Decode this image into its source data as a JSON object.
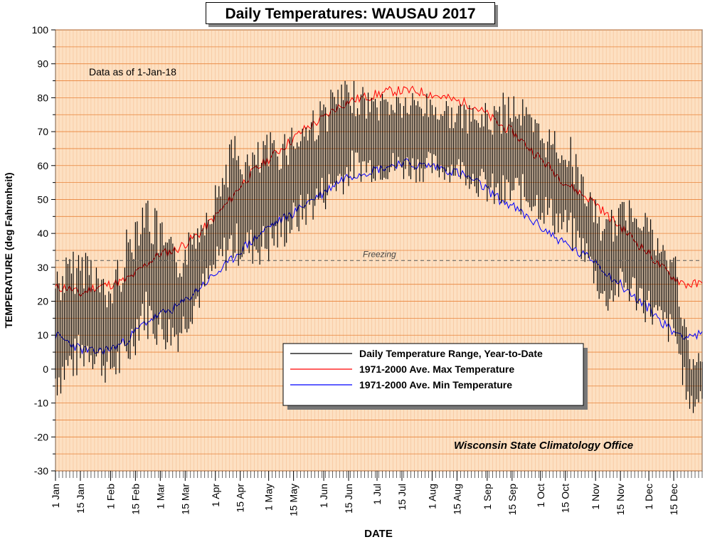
{
  "chart_data": {
    "type": "line",
    "title": "Daily Temperatures: WAUSAU 2017",
    "subtitle": "Data as of 1-Jan-18",
    "xlabel": "DATE",
    "ylabel": "TEMPERATURE (deg Fahrenheit)",
    "ylim": [
      -30,
      100
    ],
    "y_ticks": [
      "-30",
      "-20",
      "-10",
      "0",
      "10",
      "20",
      "30",
      "40",
      "50",
      "60",
      "70",
      "80",
      "90",
      "100"
    ],
    "x_ticks": [
      {
        "label": "1 Jan",
        "day": 1
      },
      {
        "label": "15 Jan",
        "day": 15
      },
      {
        "label": "1 Feb",
        "day": 32
      },
      {
        "label": "15 Feb",
        "day": 46
      },
      {
        "label": "1 Mar",
        "day": 60
      },
      {
        "label": "15 Mar",
        "day": 74
      },
      {
        "label": "1 Apr",
        "day": 91
      },
      {
        "label": "15 Apr",
        "day": 105
      },
      {
        "label": "1 May",
        "day": 121
      },
      {
        "label": "15 May",
        "day": 135
      },
      {
        "label": "1 Jun",
        "day": 152
      },
      {
        "label": "15 Jun",
        "day": 166
      },
      {
        "label": "1 Jul",
        "day": 182
      },
      {
        "label": "15 Jul",
        "day": 196
      },
      {
        "label": "1 Aug",
        "day": 213
      },
      {
        "label": "15 Aug",
        "day": 227
      },
      {
        "label": "1 Sep",
        "day": 244
      },
      {
        "label": "15 Sep",
        "day": 258
      },
      {
        "label": "1 Oct",
        "day": 274
      },
      {
        "label": "15 Oct",
        "day": 288
      },
      {
        "label": "1 Nov",
        "day": 305
      },
      {
        "label": "15 Nov",
        "day": 319
      },
      {
        "label": "1 Dec",
        "day": 335
      },
      {
        "label": "15 Dec",
        "day": 349
      }
    ],
    "reference_line": {
      "value": 32,
      "label": "Freezing"
    },
    "legend": {
      "placement": "bottom-center",
      "items": [
        {
          "label": "Daily Temperature Range, Year-to-Date",
          "color": "#000000"
        },
        {
          "label": "1971-2000 Ave. Max Temperature",
          "color": "#ff0000"
        },
        {
          "label": "1971-2000 Ave. Min Temperature",
          "color": "#0000ff"
        }
      ]
    },
    "annotation": "Wisconsin State Climatology Office",
    "series": [
      {
        "name": "1971-2000 Ave. Max Temperature",
        "color": "#ff0000",
        "points": [
          [
            1,
            24
          ],
          [
            8,
            24
          ],
          [
            15,
            22
          ],
          [
            22,
            24
          ],
          [
            32,
            25
          ],
          [
            40,
            26
          ],
          [
            46,
            28
          ],
          [
            52,
            31
          ],
          [
            60,
            34
          ],
          [
            68,
            35
          ],
          [
            74,
            37
          ],
          [
            82,
            40
          ],
          [
            91,
            45
          ],
          [
            98,
            49
          ],
          [
            105,
            54
          ],
          [
            112,
            58
          ],
          [
            121,
            62
          ],
          [
            128,
            65
          ],
          [
            135,
            68
          ],
          [
            142,
            71
          ],
          [
            152,
            74
          ],
          [
            159,
            77
          ],
          [
            166,
            79
          ],
          [
            174,
            80
          ],
          [
            182,
            81
          ],
          [
            190,
            82
          ],
          [
            196,
            82
          ],
          [
            204,
            82
          ],
          [
            213,
            81
          ],
          [
            220,
            80
          ],
          [
            227,
            79
          ],
          [
            235,
            78
          ],
          [
            244,
            75
          ],
          [
            251,
            72
          ],
          [
            258,
            70
          ],
          [
            266,
            66
          ],
          [
            274,
            62
          ],
          [
            282,
            58
          ],
          [
            288,
            55
          ],
          [
            296,
            52
          ],
          [
            305,
            49
          ],
          [
            312,
            45
          ],
          [
            319,
            42
          ],
          [
            327,
            38
          ],
          [
            335,
            34
          ],
          [
            342,
            30
          ],
          [
            349,
            27
          ],
          [
            356,
            25
          ],
          [
            365,
            25
          ]
        ]
      },
      {
        "name": "1971-2000 Ave. Min Temperature",
        "color": "#0000ff",
        "points": [
          [
            1,
            10
          ],
          [
            8,
            8
          ],
          [
            15,
            6
          ],
          [
            22,
            5
          ],
          [
            32,
            6
          ],
          [
            40,
            8
          ],
          [
            46,
            11
          ],
          [
            52,
            14
          ],
          [
            60,
            16
          ],
          [
            68,
            18
          ],
          [
            74,
            20
          ],
          [
            82,
            24
          ],
          [
            91,
            28
          ],
          [
            98,
            31
          ],
          [
            105,
            35
          ],
          [
            112,
            38
          ],
          [
            121,
            42
          ],
          [
            128,
            44
          ],
          [
            135,
            46
          ],
          [
            142,
            49
          ],
          [
            152,
            52
          ],
          [
            159,
            55
          ],
          [
            166,
            57
          ],
          [
            174,
            58
          ],
          [
            182,
            59
          ],
          [
            190,
            60
          ],
          [
            196,
            61
          ],
          [
            204,
            60
          ],
          [
            213,
            60
          ],
          [
            220,
            59
          ],
          [
            227,
            58
          ],
          [
            235,
            56
          ],
          [
            244,
            53
          ],
          [
            251,
            50
          ],
          [
            258,
            48
          ],
          [
            266,
            45
          ],
          [
            274,
            42
          ],
          [
            282,
            39
          ],
          [
            288,
            37
          ],
          [
            296,
            34
          ],
          [
            305,
            32
          ],
          [
            312,
            28
          ],
          [
            319,
            25
          ],
          [
            327,
            21
          ],
          [
            335,
            18
          ],
          [
            342,
            14
          ],
          [
            349,
            11
          ],
          [
            356,
            10
          ],
          [
            365,
            10
          ]
        ]
      },
      {
        "name": "Daily Temperature Range, Year-to-Date",
        "color": "#000000",
        "points": [
          [
            1,
            -10,
            32
          ],
          [
            10,
            -5,
            35
          ],
          [
            20,
            0,
            38
          ],
          [
            30,
            -5,
            25
          ],
          [
            40,
            -5,
            40
          ],
          [
            50,
            10,
            55
          ],
          [
            60,
            5,
            45
          ],
          [
            70,
            5,
            35
          ],
          [
            80,
            15,
            45
          ],
          [
            91,
            25,
            55
          ],
          [
            100,
            30,
            70
          ],
          [
            110,
            30,
            65
          ],
          [
            121,
            30,
            70
          ],
          [
            130,
            35,
            72
          ],
          [
            140,
            40,
            75
          ],
          [
            150,
            45,
            80
          ],
          [
            160,
            50,
            85
          ],
          [
            170,
            55,
            85
          ],
          [
            180,
            55,
            82
          ],
          [
            190,
            55,
            83
          ],
          [
            200,
            55,
            82
          ],
          [
            210,
            55,
            82
          ],
          [
            220,
            55,
            80
          ],
          [
            230,
            55,
            78
          ],
          [
            240,
            50,
            78
          ],
          [
            250,
            45,
            80
          ],
          [
            260,
            45,
            85
          ],
          [
            270,
            45,
            75
          ],
          [
            280,
            40,
            72
          ],
          [
            290,
            35,
            70
          ],
          [
            300,
            30,
            55
          ],
          [
            310,
            15,
            45
          ],
          [
            320,
            20,
            50
          ],
          [
            330,
            15,
            55
          ],
          [
            340,
            10,
            40
          ],
          [
            350,
            5,
            35
          ],
          [
            358,
            -15,
            5
          ],
          [
            365,
            -10,
            5
          ]
        ]
      }
    ]
  }
}
